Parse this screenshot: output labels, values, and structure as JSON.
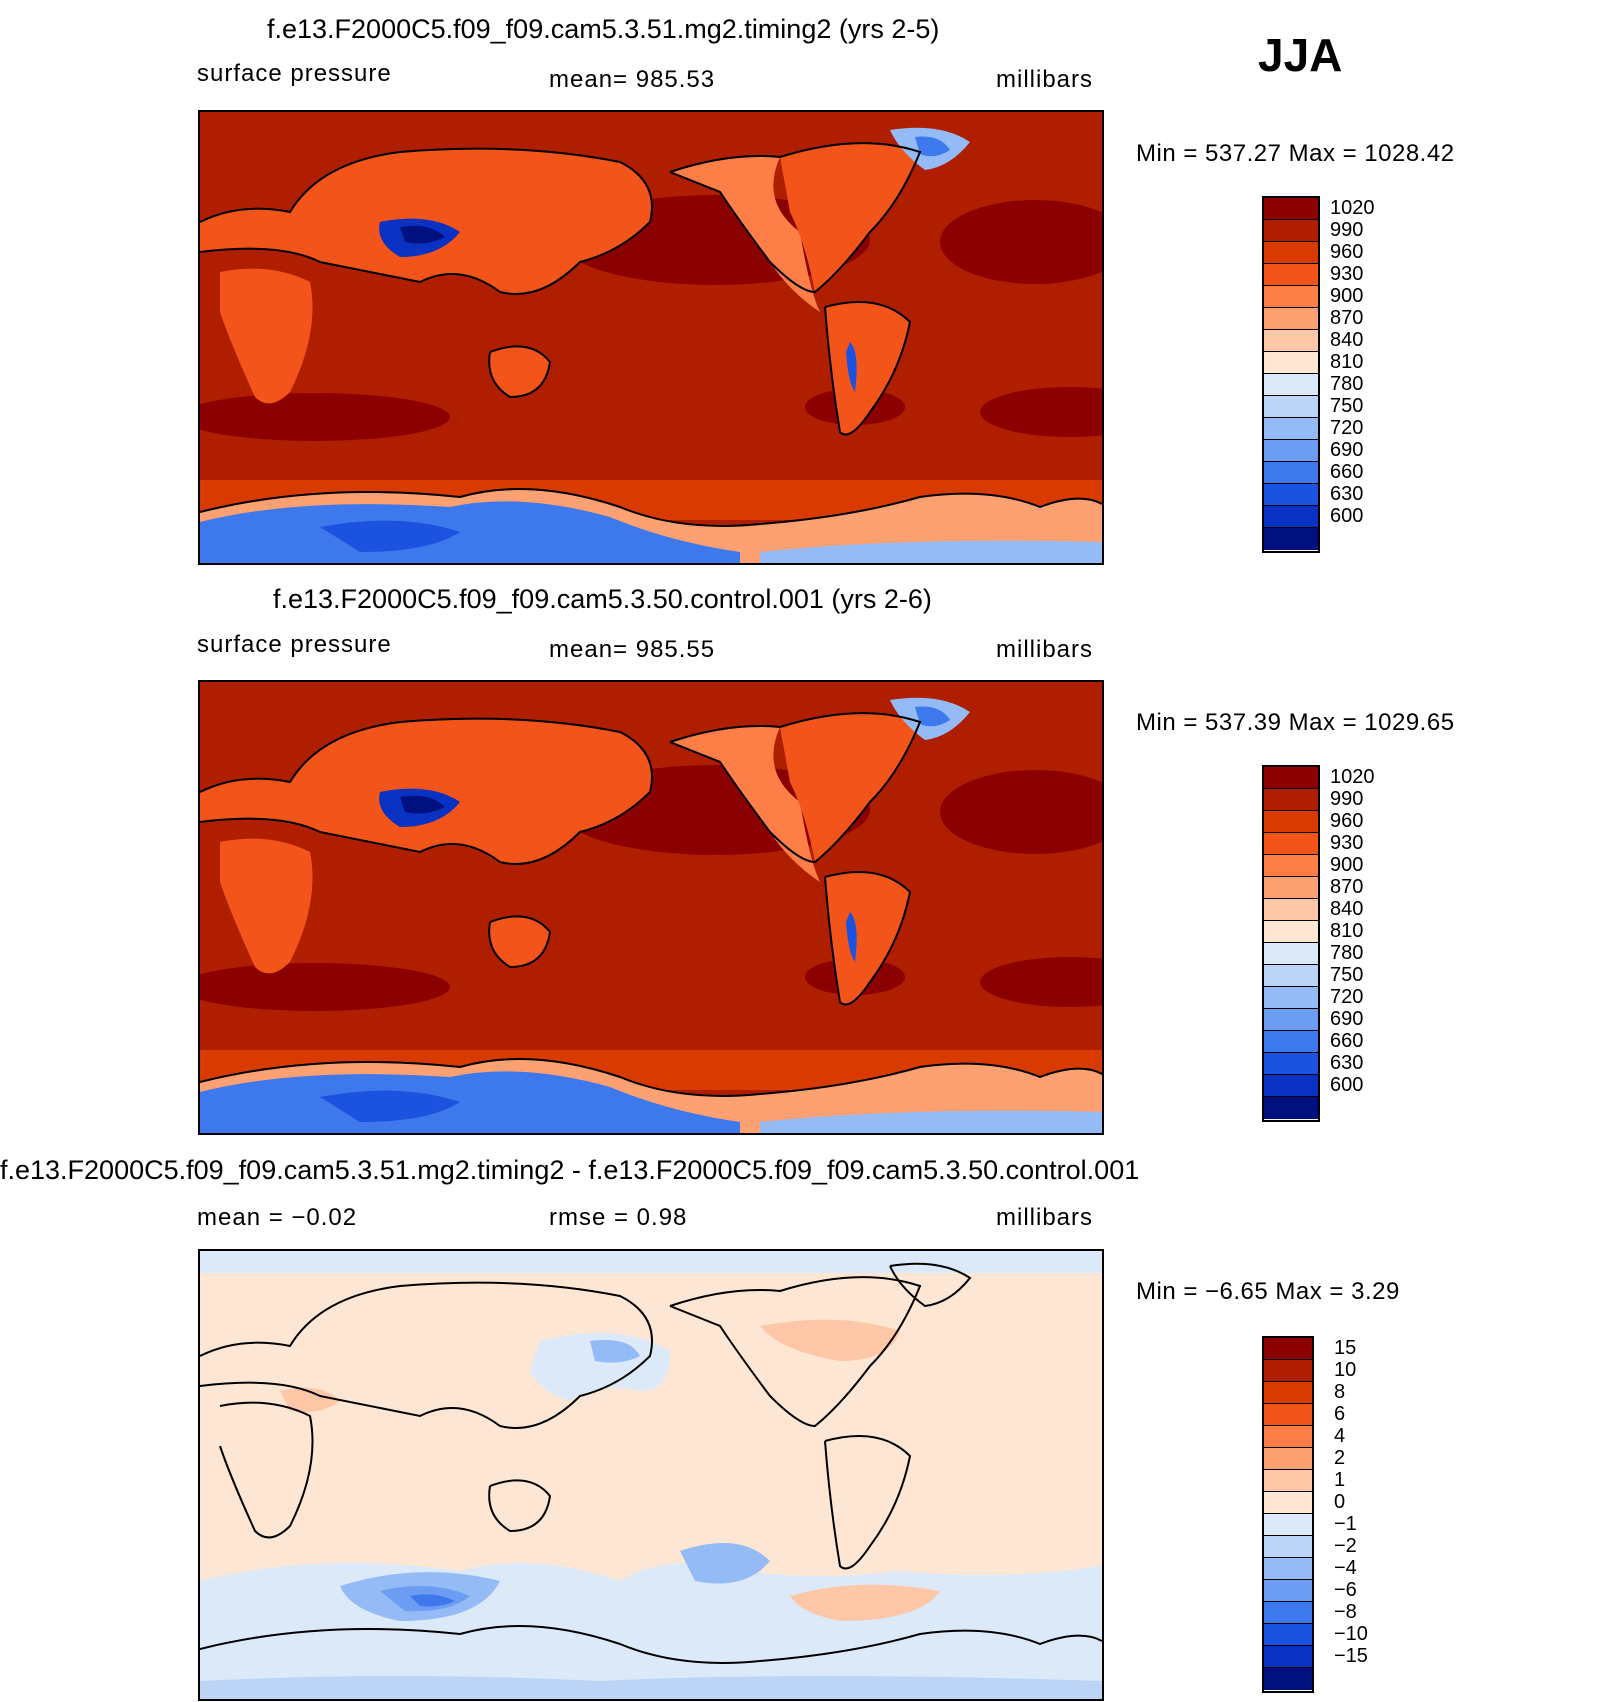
{
  "season": "JJA",
  "panels": [
    {
      "title": "f.e13.F2000C5.f09_f09.cam5.3.51.mg2.timing2 (yrs 2-5)",
      "left_label": "surface pressure",
      "center_label": "mean=  985.53",
      "right_label": "millibars",
      "minmax": "Min  =  537.27  Max  =  1028.42",
      "colorbar_labels": [
        "1020",
        "990",
        "960",
        "930",
        "900",
        "870",
        "840",
        "810",
        "780",
        "750",
        "720",
        "690",
        "660",
        "630",
        "600"
      ],
      "colorbar_colors": [
        "#8b0000",
        "#b01e00",
        "#d83a00",
        "#f2541a",
        "#fd7f47",
        "#fda172",
        "#fdc7a8",
        "#fee6d4",
        "#dbe9f8",
        "#bcd5f7",
        "#94bbf5",
        "#6c9df2",
        "#3d78ec",
        "#1c52e0",
        "#0a32c2",
        "#00107e"
      ]
    },
    {
      "title": "f.e13.F2000C5.f09_f09.cam5.3.50.control.001 (yrs 2-6)",
      "left_label": "surface pressure",
      "center_label": "mean=  985.55",
      "right_label": "millibars",
      "minmax": "Min  =  537.39  Max  =  1029.65",
      "colorbar_labels": [
        "1020",
        "990",
        "960",
        "930",
        "900",
        "870",
        "840",
        "810",
        "780",
        "750",
        "720",
        "690",
        "660",
        "630",
        "600"
      ],
      "colorbar_colors": [
        "#8b0000",
        "#b01e00",
        "#d83a00",
        "#f2541a",
        "#fd7f47",
        "#fda172",
        "#fdc7a8",
        "#fee6d4",
        "#dbe9f8",
        "#bcd5f7",
        "#94bbf5",
        "#6c9df2",
        "#3d78ec",
        "#1c52e0",
        "#0a32c2",
        "#00107e"
      ]
    },
    {
      "title": "f.e13.F2000C5.f09_f09.cam5.3.51.mg2.timing2 - f.e13.F2000C5.f09_f09.cam5.3.50.control.001",
      "left_label": "mean  =    −0.02",
      "center_label": "rmse  =     0.98",
      "right_label": "millibars",
      "minmax": "Min  =    −6.65  Max  =       3.29",
      "colorbar_labels": [
        "15",
        "10",
        "8",
        "6",
        "4",
        "2",
        "1",
        "0",
        "−1",
        "−2",
        "−4",
        "−6",
        "−8",
        "−10",
        "−15"
      ],
      "colorbar_colors": [
        "#8b0000",
        "#b01e00",
        "#d83a00",
        "#f2541a",
        "#fd7f47",
        "#fda172",
        "#fdc7a8",
        "#fee6d4",
        "#dbe9f8",
        "#bcd5f7",
        "#94bbf5",
        "#6c9df2",
        "#3d78ec",
        "#1c52e0",
        "#0a32c2",
        "#00107e"
      ]
    }
  ]
}
